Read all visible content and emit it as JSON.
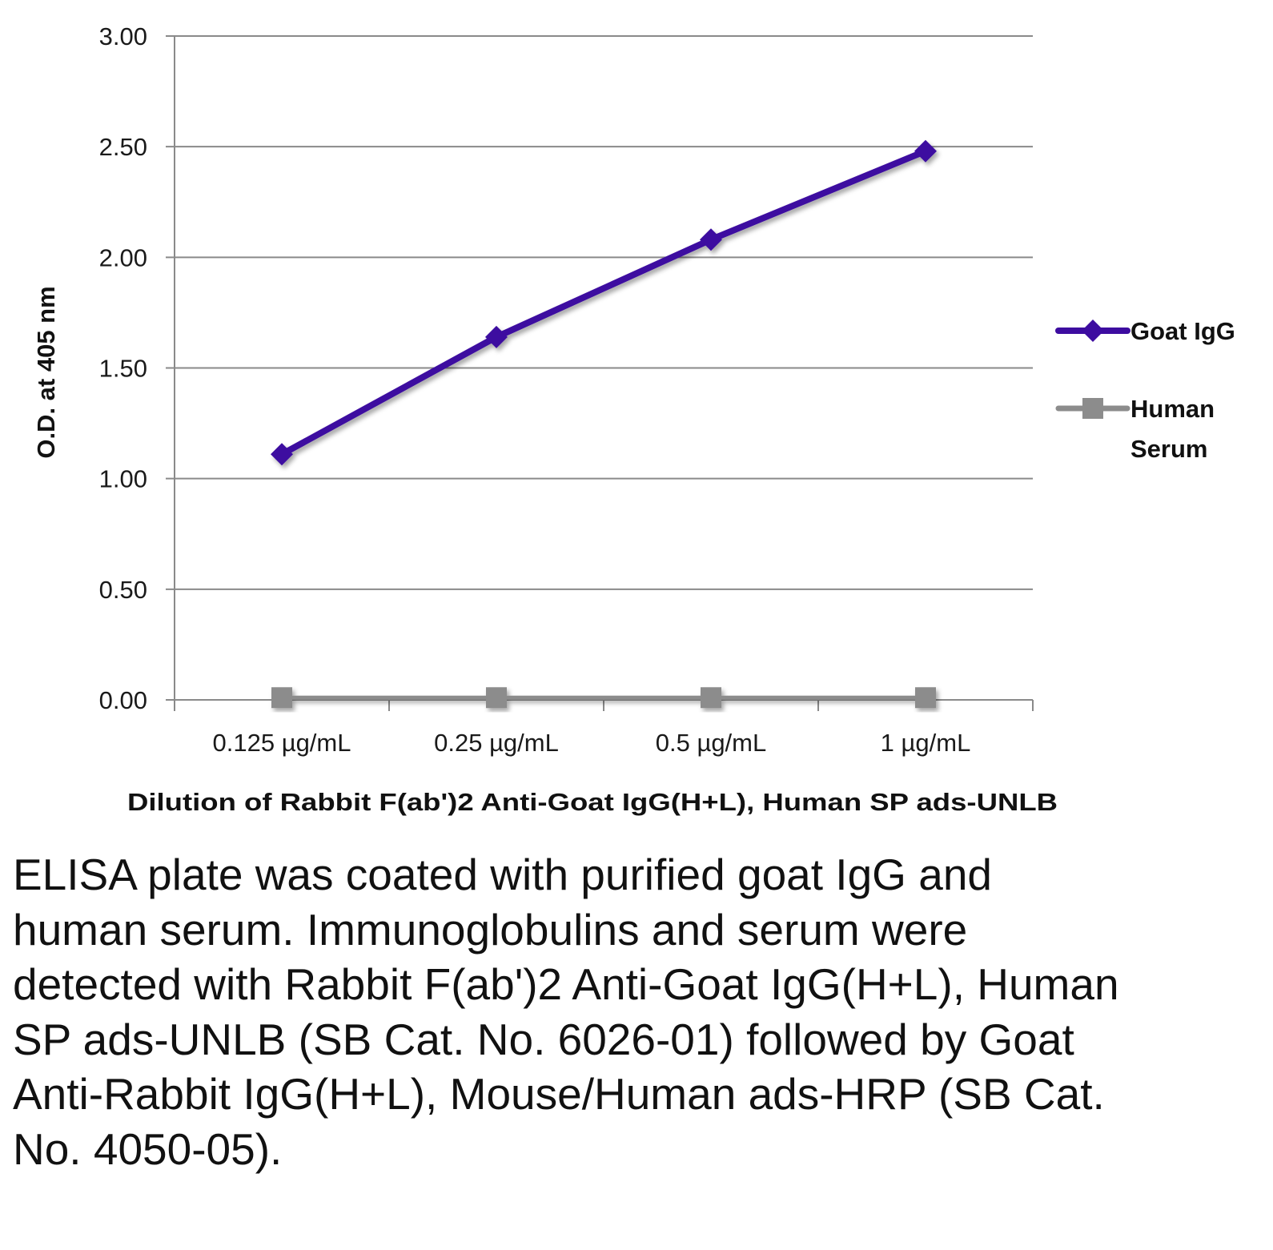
{
  "chart_data": {
    "type": "line",
    "categories": [
      "0.125 µg/mL",
      "0.25 µg/mL",
      "0.5 µg/mL",
      "1 µg/mL"
    ],
    "series": [
      {
        "name": "Goat IgG",
        "values": [
          1.11,
          1.64,
          2.08,
          2.48
        ],
        "color": "#3d0ca0",
        "marker": "diamond"
      },
      {
        "name": "Human Serum",
        "values": [
          0.01,
          0.01,
          0.01,
          0.01
        ],
        "color": "#8c8c8c",
        "marker": "square"
      }
    ],
    "title": "",
    "xlabel": "Dilution of Rabbit F(ab')2 Anti-Goat IgG(H+L), Human SP ads-UNLB",
    "ylabel": "O.D. at 405 nm",
    "ylim": [
      0,
      3
    ],
    "yticks": [
      "0.00",
      "0.50",
      "1.00",
      "1.50",
      "2.00",
      "2.50",
      "3.00"
    ],
    "grid": true,
    "legend_position": "right"
  },
  "caption": "ELISA plate was coated with purified goat IgG and human serum.  Immunoglobulins and serum were detected with Rabbit F(ab')2 Anti-Goat IgG(H+L), Human SP ads-UNLB (SB Cat. No. 6026-01) followed by Goat Anti-Rabbit IgG(H+L), Mouse/Human ads-HRP (SB Cat. No. 4050-05)."
}
